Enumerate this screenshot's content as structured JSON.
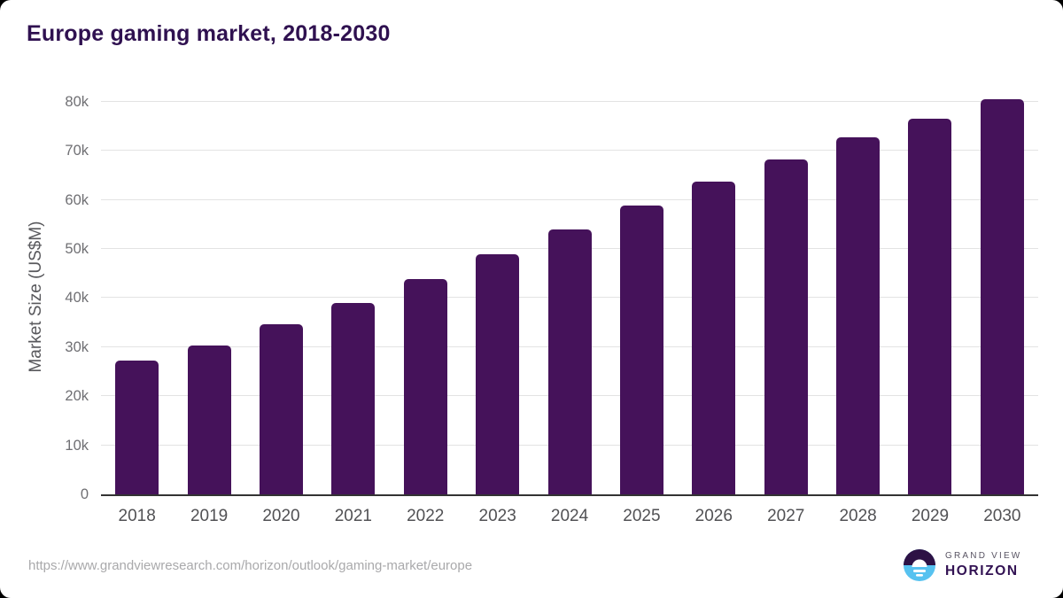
{
  "title": "Europe gaming market, 2018-2030",
  "source_url": "https://www.grandviewresearch.com/horizon/outlook/gaming-market/europe",
  "logo": {
    "brand": "GRAND VIEW",
    "product": "HORIZON"
  },
  "colors": {
    "bar": "#45125A",
    "title_text": "#2f1150",
    "gridline": "#e3e3e3",
    "axis_line": "#333333",
    "tick_label": "#6f6f73",
    "x_label": "#515154",
    "url_text": "#a9a9ab",
    "logo_purple": "#2d1145",
    "logo_blue": "#57c2f0"
  },
  "chart_data": {
    "type": "bar",
    "title": "Europe gaming market, 2018-2030",
    "categories": [
      "2018",
      "2019",
      "2020",
      "2021",
      "2022",
      "2023",
      "2024",
      "2025",
      "2026",
      "2027",
      "2028",
      "2029",
      "2030"
    ],
    "values": [
      27300,
      30400,
      34600,
      39000,
      43900,
      48900,
      54000,
      58800,
      63700,
      68300,
      72700,
      76600,
      80600
    ],
    "xlabel": "",
    "ylabel": "Market Size (US$M)",
    "ylim": [
      0,
      82700
    ],
    "yticks": [
      0,
      10000,
      20000,
      30000,
      40000,
      50000,
      60000,
      70000,
      80000
    ],
    "ytick_labels": [
      "0",
      "10k",
      "20k",
      "30k",
      "40k",
      "50k",
      "60k",
      "70k",
      "80k"
    ],
    "grid": true,
    "legend": false,
    "bar_color": "#45125A"
  }
}
